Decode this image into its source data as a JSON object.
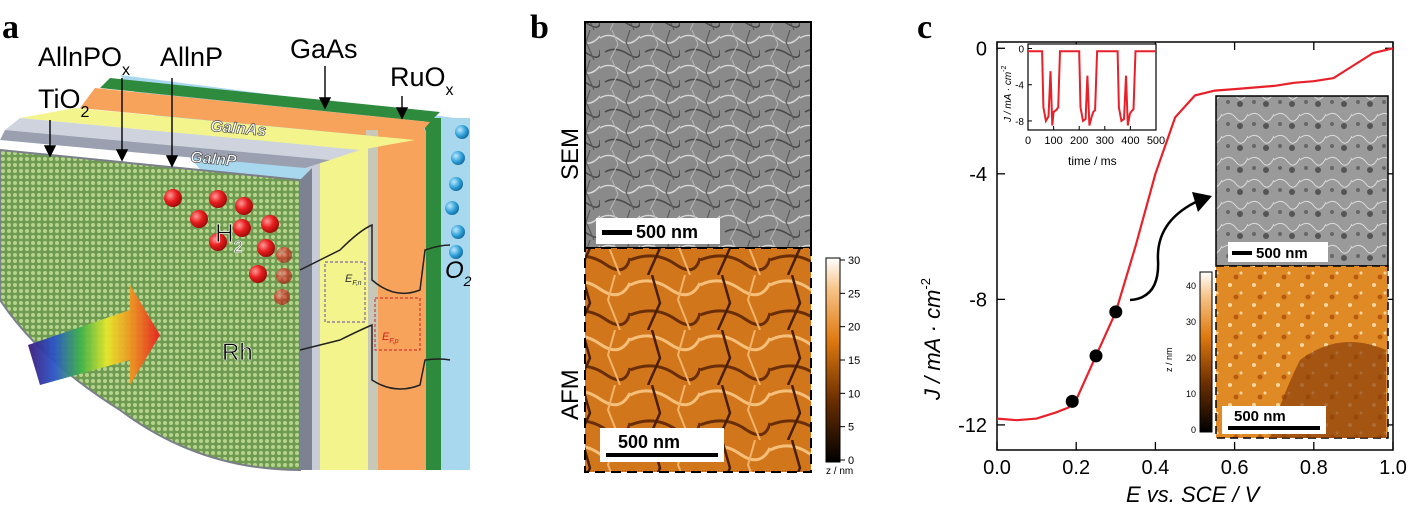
{
  "panel_a": {
    "letter": "a",
    "layers": [
      "AllnPO",
      "x",
      "AllnP",
      "TiO",
      "2",
      "GaAs",
      "RuO",
      "x"
    ],
    "labels": {
      "allnpo": "AllnPO",
      "allnpo_sub": "x",
      "allnp": "AllnP",
      "tio": "TiO",
      "tio_sub": "2",
      "gaas": "GaAs",
      "ruo": "RuO",
      "ruo_sub": "x",
      "galnas": "GaInAs",
      "galnp": "GaInP",
      "h": "H",
      "h_sub": "2",
      "o": "O",
      "o_sub": "2",
      "rh": "Rh",
      "efn": "E",
      "efn_sub": "F,n",
      "efp": "E",
      "efp_sub": "F,p"
    },
    "colors": {
      "rh_surface": "#8fb36a",
      "galnp": "#f3f58c",
      "galnas": "#f7a35c",
      "gaas": "#2e8b3d",
      "ruox": "#a8d8ee",
      "water_drop": "#2ea0d8",
      "h2": "#e82020"
    }
  },
  "panel_b": {
    "letter": "b",
    "sem_label": "SEM",
    "afm_label": "AFM",
    "sem_scalebar": "500 nm",
    "afm_scalebar": "500 nm",
    "colorbar_ticks": [
      "30",
      "25",
      "20",
      "15",
      "10",
      "5",
      "0"
    ],
    "colorbar_unit": "z / nm"
  },
  "panel_c": {
    "letter": "c",
    "ylabel_main": "J / mA · cm",
    "ylabel_sup": "-2",
    "xlabel": "E vs. SCE / V",
    "inset_ylabel": "J / mA · cm",
    "inset_ylabel_sup": "-2",
    "inset_xlabel": "time / ms",
    "inset_sem_scalebar": "500 nm",
    "inset_afm_scalebar": "500 nm",
    "inset_colorbar_ticks": [
      "40",
      "30",
      "20",
      "10",
      "0"
    ],
    "inset_colorbar_unit": "z / nm"
  },
  "chart_data": [
    {
      "type": "line",
      "id": "main_jv",
      "xlabel": "E vs. SCE / V",
      "ylabel": "J / mA · cm-2",
      "xlim": [
        0.0,
        1.0
      ],
      "ylim": [
        -12.8,
        0.2
      ],
      "xticks": [
        "0.0",
        "0.2",
        "0.4",
        "0.6",
        "0.8",
        "1.0"
      ],
      "yticks": [
        "0",
        "-4",
        "-8",
        "-12"
      ],
      "line_color": "#e8202a",
      "series": [
        {
          "x": [
            0.0,
            0.05,
            0.1,
            0.15,
            0.18,
            0.2,
            0.25,
            0.3,
            0.35,
            0.4,
            0.45,
            0.5,
            0.55,
            0.6,
            0.65,
            0.7,
            0.75,
            0.8,
            0.85,
            0.9,
            0.95,
            1.0
          ],
          "values": [
            -11.8,
            -11.85,
            -11.8,
            -11.6,
            -11.45,
            -11.2,
            -9.8,
            -8.4,
            -6.3,
            -4.0,
            -2.2,
            -1.5,
            -1.35,
            -1.3,
            -1.25,
            -1.2,
            -1.1,
            -1.05,
            -0.95,
            -0.55,
            -0.15,
            0.0
          ]
        }
      ],
      "markers": [
        {
          "x": 0.19,
          "y": -11.25
        },
        {
          "x": 0.25,
          "y": -9.8
        },
        {
          "x": 0.3,
          "y": -8.4
        }
      ]
    },
    {
      "type": "line",
      "id": "inset_transient",
      "xlabel": "time / ms",
      "ylabel": "J / mA · cm-2",
      "xlim": [
        0,
        500
      ],
      "ylim": [
        -9,
        0.5
      ],
      "xticks": [
        "0",
        "100",
        "200",
        "300",
        "400",
        "500"
      ],
      "yticks": [
        "0",
        "-4",
        "-8"
      ],
      "line_color": "#e8202a",
      "series": [
        {
          "x": [
            0,
            55,
            60,
            70,
            80,
            88,
            95,
            100,
            110,
            118,
            125,
            200,
            205,
            215,
            225,
            232,
            240,
            248,
            255,
            262,
            270,
            350,
            355,
            365,
            375,
            383,
            390,
            398,
            405,
            412,
            420,
            500
          ],
          "values": [
            -0.3,
            -0.3,
            -6.5,
            -8.0,
            -7.5,
            -2.5,
            -8.5,
            -7.0,
            -6.8,
            -6.5,
            -0.3,
            -0.3,
            -6.5,
            -8.0,
            -7.8,
            -3.0,
            -8.5,
            -7.6,
            -7.0,
            -6.8,
            -0.3,
            -0.3,
            -6.5,
            -8.0,
            -7.8,
            -3.0,
            -8.5,
            -7.2,
            -6.9,
            -6.7,
            -0.3,
            -0.3
          ]
        }
      ]
    }
  ]
}
